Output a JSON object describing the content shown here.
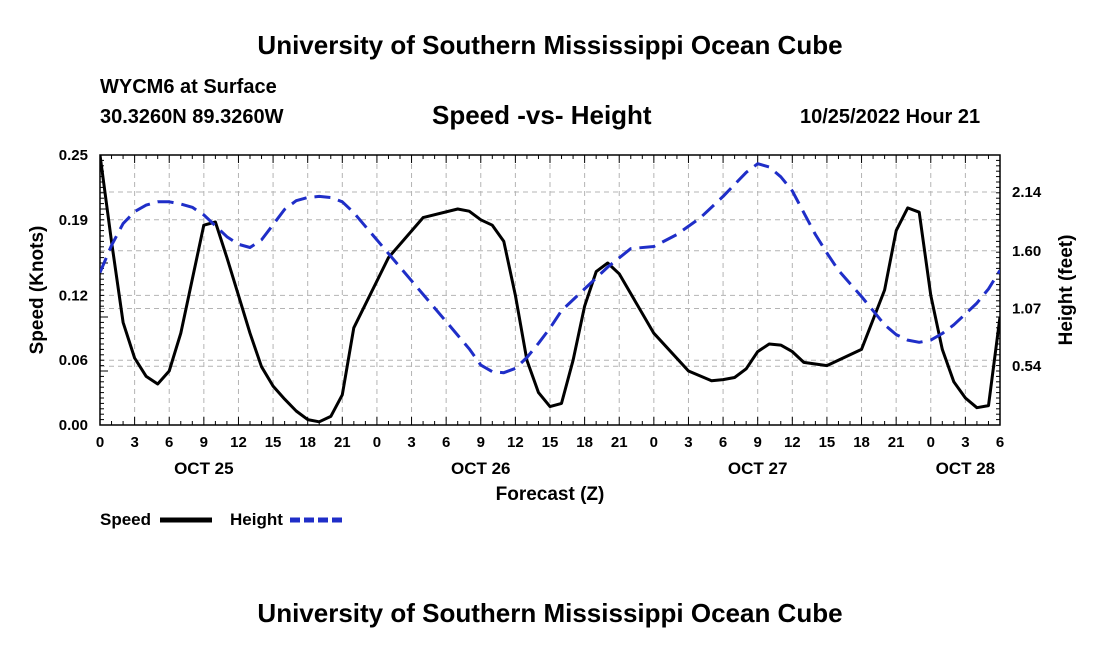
{
  "page": {
    "title_top": "University of Southern Mississippi Ocean Cube",
    "title_bottom": "University of Southern Mississippi Ocean Cube",
    "station": "WYCM6 at Surface",
    "coords": "30.3260N  89.3260W",
    "datetime": "10/25/2022 Hour 21"
  },
  "chart_data": {
    "type": "line",
    "title": "Speed -vs- Height",
    "xlabel": "Forecast (Z)",
    "ylabel_left": "Speed (Knots)",
    "ylabel_right": "Height (feet)",
    "x_range": [
      0,
      78
    ],
    "xlim_label_step": 3,
    "x_tick_labels": [
      "0",
      "3",
      "6",
      "9",
      "12",
      "15",
      "18",
      "21",
      "0",
      "3",
      "6",
      "9",
      "12",
      "15",
      "18",
      "21",
      "0",
      "3",
      "6",
      "9",
      "12",
      "15",
      "18",
      "21",
      "0",
      "3",
      "6"
    ],
    "day_labels": [
      {
        "at": 9,
        "label": "OCT 25"
      },
      {
        "at": 33,
        "label": "OCT 26"
      },
      {
        "at": 57,
        "label": "OCT 27"
      },
      {
        "at": 75,
        "label": "OCT 28"
      }
    ],
    "y_left": {
      "min": 0,
      "max": 0.25,
      "ticks": [
        0.0,
        0.06,
        0.12,
        0.19,
        0.25
      ],
      "tick_labels": [
        "0.00",
        "0.06",
        "0.12",
        "0.19",
        "0.25"
      ]
    },
    "y_right": {
      "min": 0.0,
      "max": 2.48,
      "ticks": [
        0.54,
        1.07,
        1.6,
        2.14
      ],
      "tick_labels": [
        "0.54",
        "1.07",
        "1.60",
        "2.14"
      ]
    },
    "grid": true,
    "legend": [
      {
        "name": "Speed",
        "color": "#000000",
        "style": "solid"
      },
      {
        "name": "Height",
        "color": "#1f2ec8",
        "style": "dashed"
      }
    ],
    "series": [
      {
        "name": "Speed",
        "axis": "left",
        "color": "#000000",
        "x": [
          0,
          1,
          2,
          3,
          4,
          5,
          6,
          7,
          8,
          9,
          10,
          11,
          12,
          13,
          14,
          15,
          16,
          17,
          18,
          19,
          20,
          21,
          22,
          25,
          28,
          31,
          32,
          33,
          34,
          35,
          36,
          37,
          38,
          39,
          40,
          41,
          42,
          43,
          44,
          45,
          48,
          51,
          53,
          54,
          55,
          56,
          57,
          58,
          59,
          60,
          61,
          63,
          66,
          68,
          69,
          70,
          71,
          72,
          73,
          74,
          75,
          76,
          77,
          78
        ],
        "values": [
          0.25,
          0.17,
          0.095,
          0.062,
          0.045,
          0.038,
          0.05,
          0.085,
          0.135,
          0.185,
          0.188,
          0.155,
          0.12,
          0.085,
          0.054,
          0.036,
          0.024,
          0.013,
          0.005,
          0.003,
          0.008,
          0.028,
          0.09,
          0.155,
          0.192,
          0.2,
          0.198,
          0.19,
          0.185,
          0.17,
          0.12,
          0.06,
          0.03,
          0.017,
          0.02,
          0.06,
          0.11,
          0.142,
          0.15,
          0.14,
          0.085,
          0.05,
          0.041,
          0.042,
          0.044,
          0.052,
          0.068,
          0.075,
          0.074,
          0.068,
          0.058,
          0.055,
          0.07,
          0.125,
          0.18,
          0.201,
          0.197,
          0.12,
          0.07,
          0.04,
          0.025,
          0.016,
          0.018,
          0.1
        ]
      },
      {
        "name": "Height",
        "axis": "right",
        "color": "#1f2ec8",
        "x": [
          0,
          1,
          2,
          3,
          4,
          5,
          6,
          7,
          8,
          9,
          10,
          11,
          12,
          13,
          14,
          15,
          16,
          17,
          18,
          19,
          20,
          21,
          22,
          24,
          26,
          28,
          30,
          32,
          33,
          34,
          35,
          36,
          37,
          38,
          39,
          40,
          42,
          44,
          46,
          48,
          50,
          52,
          54,
          56,
          57,
          58,
          59,
          60,
          61,
          62,
          63,
          64,
          65,
          66,
          67,
          68,
          69,
          70,
          71,
          72,
          73,
          74,
          75,
          76,
          77,
          78
        ],
        "values": [
          1.4,
          1.65,
          1.85,
          1.96,
          2.02,
          2.05,
          2.05,
          2.03,
          2.0,
          1.93,
          1.83,
          1.73,
          1.66,
          1.63,
          1.7,
          1.84,
          1.98,
          2.06,
          2.09,
          2.1,
          2.09,
          2.05,
          1.95,
          1.7,
          1.45,
          1.2,
          0.95,
          0.7,
          0.55,
          0.49,
          0.48,
          0.52,
          0.62,
          0.75,
          0.89,
          1.05,
          1.25,
          1.45,
          1.62,
          1.64,
          1.75,
          1.9,
          2.1,
          2.32,
          2.4,
          2.37,
          2.28,
          2.15,
          1.95,
          1.75,
          1.58,
          1.42,
          1.3,
          1.18,
          1.05,
          0.92,
          0.83,
          0.78,
          0.76,
          0.78,
          0.84,
          0.92,
          1.02,
          1.12,
          1.25,
          1.42
        ]
      }
    ]
  }
}
